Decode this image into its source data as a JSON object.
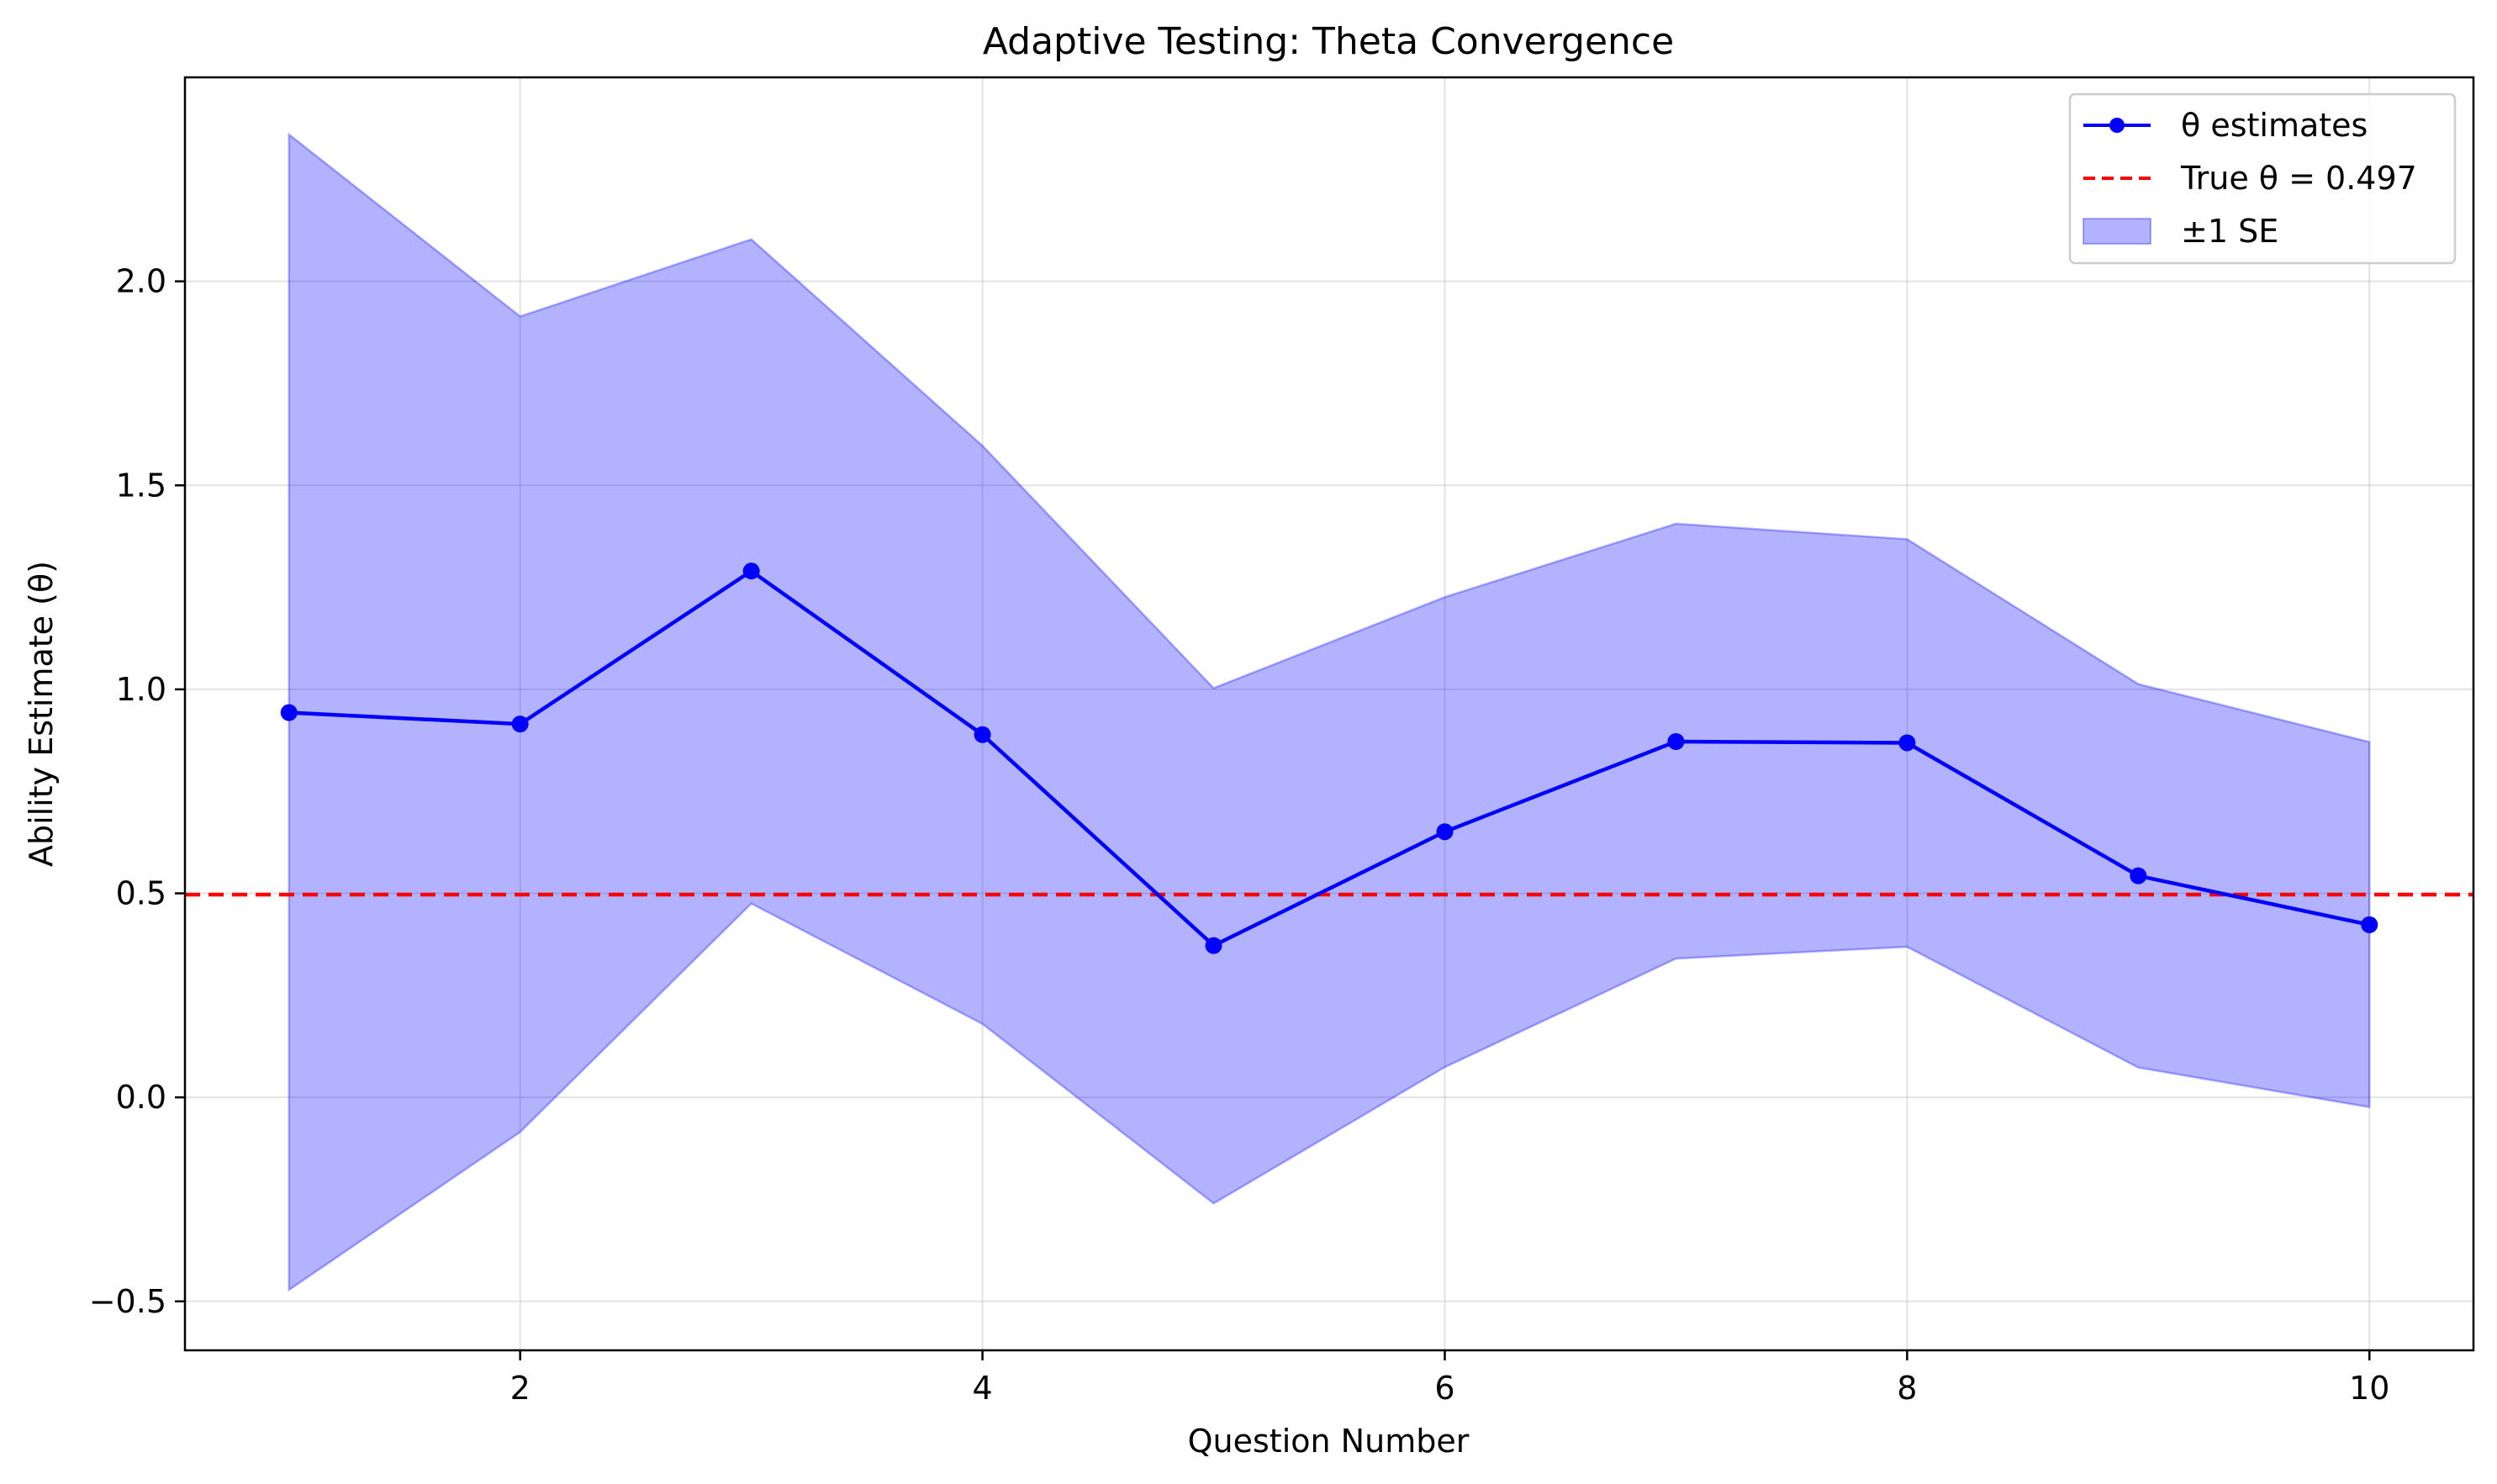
{
  "chart_data": {
    "type": "line",
    "title": "Adaptive Testing: Theta Convergence",
    "xlabel": "Question Number",
    "ylabel": "Ability Estimate (θ)",
    "xlim": [
      0.55,
      10.45
    ],
    "ylim": [
      -0.62,
      2.5
    ],
    "xticks": [
      2,
      4,
      6,
      8,
      10
    ],
    "yticks": [
      -0.5,
      0.0,
      0.5,
      1.0,
      1.5,
      2.0
    ],
    "ytick_labels": [
      "−0.5",
      "0.0",
      "0.5",
      "1.0",
      "1.5",
      "2.0"
    ],
    "grid": true,
    "legend_position": "top-right",
    "x": [
      1,
      2,
      3,
      4,
      5,
      6,
      7,
      8,
      9,
      10
    ],
    "series": [
      {
        "name": "θ estimates",
        "kind": "line-markers",
        "color": "#0000ff",
        "values": [
          0.943,
          0.915,
          1.29,
          0.889,
          0.372,
          0.651,
          0.872,
          0.869,
          0.543,
          0.423
        ]
      },
      {
        "name": "True θ = 0.497",
        "kind": "hline",
        "color": "#ff0000",
        "value": 0.497
      },
      {
        "name": "±1 SE",
        "kind": "band",
        "color": "#0000ff",
        "lower": [
          -0.472,
          -0.085,
          0.475,
          0.18,
          -0.26,
          0.074,
          0.34,
          0.369,
          0.073,
          -0.024
        ],
        "upper": [
          2.36,
          1.914,
          2.103,
          1.597,
          1.003,
          1.226,
          1.406,
          1.368,
          1.013,
          0.871
        ]
      }
    ]
  }
}
